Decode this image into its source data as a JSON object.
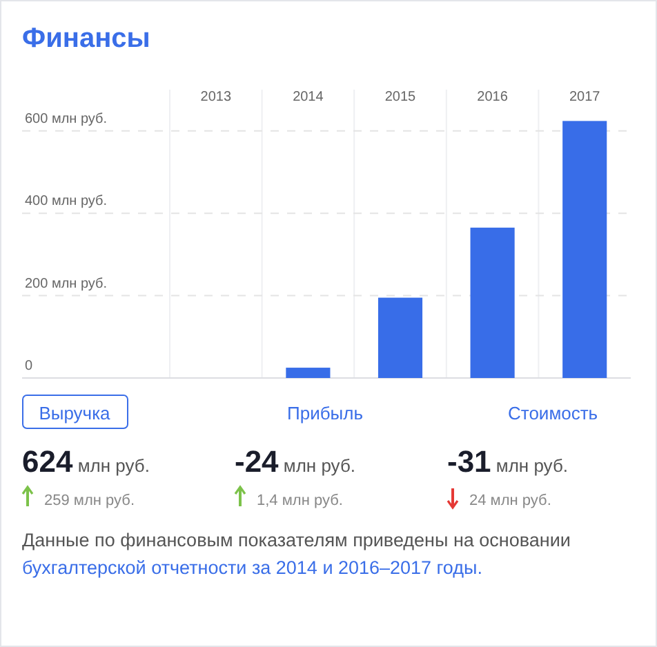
{
  "chart_data": {
    "type": "bar",
    "title": "Финансы",
    "categories": [
      "2013",
      "2014",
      "2015",
      "2016",
      "2017"
    ],
    "values": [
      null,
      25,
      195,
      365,
      624
    ],
    "color": "#386de8",
    "ylim": [
      0,
      700
    ],
    "yticks": [
      {
        "value": 0,
        "label": "0"
      },
      {
        "value": 200,
        "label": "200 млн руб."
      },
      {
        "value": 400,
        "label": "400 млн руб."
      },
      {
        "value": 600,
        "label": "600 млн руб."
      }
    ],
    "grid": "y",
    "annotations": [
      "Выручка",
      "Прибыль",
      "Стоимость",
      "624 млн руб.",
      "-24 млн руб.",
      "-31 млн руб.",
      "259 млн руб.",
      "1,4 млн руб.",
      "24 млн руб.",
      "Данные по финансовым показателям приведены на основании ",
      "бухгалтерской отчетности за 2014 и 2016–2017 годы."
    ]
  }
}
